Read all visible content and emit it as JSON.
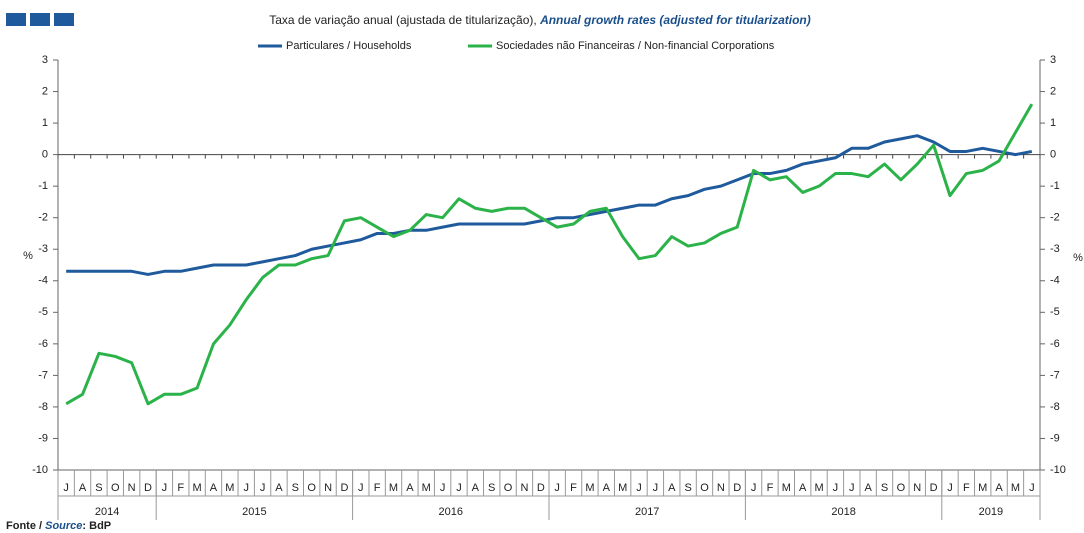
{
  "chart_data": {
    "type": "line",
    "title": "Taxa de variação anual (ajustada de titularização), ",
    "title_en": "Annual growth rates (adjusted for titularization)",
    "y_label": "%",
    "y2_label": "%",
    "categories": [
      "J",
      "A",
      "S",
      "O",
      "N",
      "D",
      "J",
      "F",
      "M",
      "A",
      "M",
      "J",
      "J",
      "A",
      "S",
      "O",
      "N",
      "D",
      "J",
      "F",
      "M",
      "A",
      "M",
      "J",
      "J",
      "A",
      "S",
      "O",
      "N",
      "D",
      "J",
      "F",
      "M",
      "A",
      "M",
      "J",
      "J",
      "A",
      "S",
      "O",
      "N",
      "D",
      "J",
      "F",
      "M",
      "A",
      "M",
      "J",
      "J",
      "A",
      "S",
      "O",
      "N",
      "D",
      "J",
      "F",
      "M",
      "A",
      "M",
      "J"
    ],
    "years": [
      "2014",
      "2015",
      "2016",
      "2017",
      "2018",
      "2019"
    ],
    "series": [
      {
        "name": "Particulares / Households",
        "color": "#1f5a9c",
        "values": [
          -3.7,
          -3.7,
          -3.7,
          -3.7,
          -3.7,
          -3.8,
          -3.7,
          -3.7,
          -3.6,
          -3.5,
          -3.5,
          -3.5,
          -3.4,
          -3.3,
          -3.2,
          -3.0,
          -2.9,
          -2.8,
          -2.7,
          -2.5,
          -2.5,
          -2.4,
          -2.4,
          -2.3,
          -2.2,
          -2.2,
          -2.2,
          -2.2,
          -2.2,
          -2.1,
          -2.0,
          -2.0,
          -1.9,
          -1.8,
          -1.7,
          -1.6,
          -1.6,
          -1.4,
          -1.3,
          -1.1,
          -1.0,
          -0.8,
          -0.6,
          -0.6,
          -0.5,
          -0.3,
          -0.2,
          -0.1,
          0.2,
          0.2,
          0.4,
          0.5,
          0.6,
          0.4,
          0.1,
          0.1,
          0.2,
          0.1,
          0.0,
          0.1
        ]
      },
      {
        "name": "Sociedades não Financeiras / Non-financial Corporations",
        "color": "#2bb34a",
        "values": [
          -7.9,
          -7.6,
          -6.3,
          -6.4,
          -6.6,
          -7.9,
          -7.6,
          -7.6,
          -7.4,
          -6.0,
          -5.4,
          -4.6,
          -3.9,
          -3.5,
          -3.5,
          -3.3,
          -3.2,
          -2.1,
          -2.0,
          -2.3,
          -2.6,
          -2.4,
          -1.9,
          -2.0,
          -1.4,
          -1.7,
          -1.8,
          -1.7,
          -1.7,
          -2.0,
          -2.3,
          -2.2,
          -1.8,
          -1.7,
          -2.6,
          -3.3,
          -3.2,
          -2.6,
          -2.9,
          -2.8,
          -2.5,
          -2.3,
          -0.5,
          -0.8,
          -0.7,
          -1.2,
          -1.0,
          -0.6,
          -0.6,
          -0.7,
          -0.3,
          -0.8,
          -0.3,
          0.3,
          -1.3,
          -0.6,
          -0.5,
          -0.2,
          0.7,
          1.6
        ]
      }
    ],
    "ylim": [
      -10,
      3
    ],
    "yticks": [
      -10,
      -9,
      -8,
      -7,
      -6,
      -5,
      -4,
      -3,
      -2,
      -1,
      0,
      1,
      2,
      3
    ],
    "y2lim": [
      -10,
      3
    ],
    "y2ticks": [
      -10,
      -9,
      -8,
      -7,
      -6,
      -5,
      -4,
      -3,
      -2,
      -1,
      0,
      1,
      2,
      3
    ],
    "source_label": "Fonte / ",
    "source_label_en": "Source",
    "source": ": BdP"
  }
}
